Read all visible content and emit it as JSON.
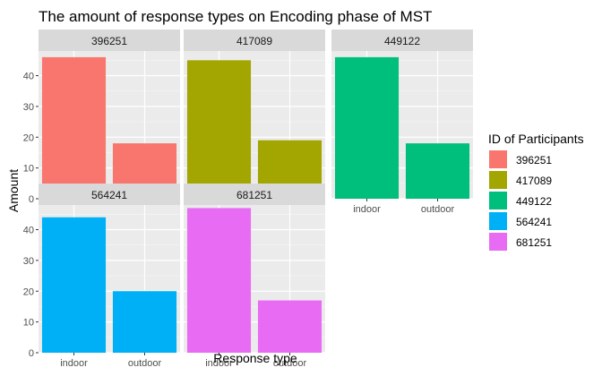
{
  "chart_data": {
    "type": "bar",
    "title": "The amount of response types on Encoding phase of MST",
    "xlabel": "Response type",
    "ylabel": "Amount",
    "categories": [
      "indoor",
      "outdoor"
    ],
    "ylim": [
      0,
      48
    ],
    "yticks": [
      0,
      10,
      20,
      30,
      40
    ],
    "grid": true,
    "facet_layout": "3 columns x 2 rows",
    "legend": {
      "title": "ID of Participants",
      "position": "right"
    },
    "series": [
      {
        "name": "396251",
        "color": "#F8766D",
        "values": [
          46,
          18
        ]
      },
      {
        "name": "417089",
        "color": "#A3A500",
        "values": [
          45,
          19
        ]
      },
      {
        "name": "449122",
        "color": "#00BF7D",
        "values": [
          46,
          18
        ]
      },
      {
        "name": "564241",
        "color": "#00B0F6",
        "values": [
          44,
          20
        ]
      },
      {
        "name": "681251",
        "color": "#E76BF3",
        "values": [
          47,
          17
        ]
      }
    ]
  }
}
